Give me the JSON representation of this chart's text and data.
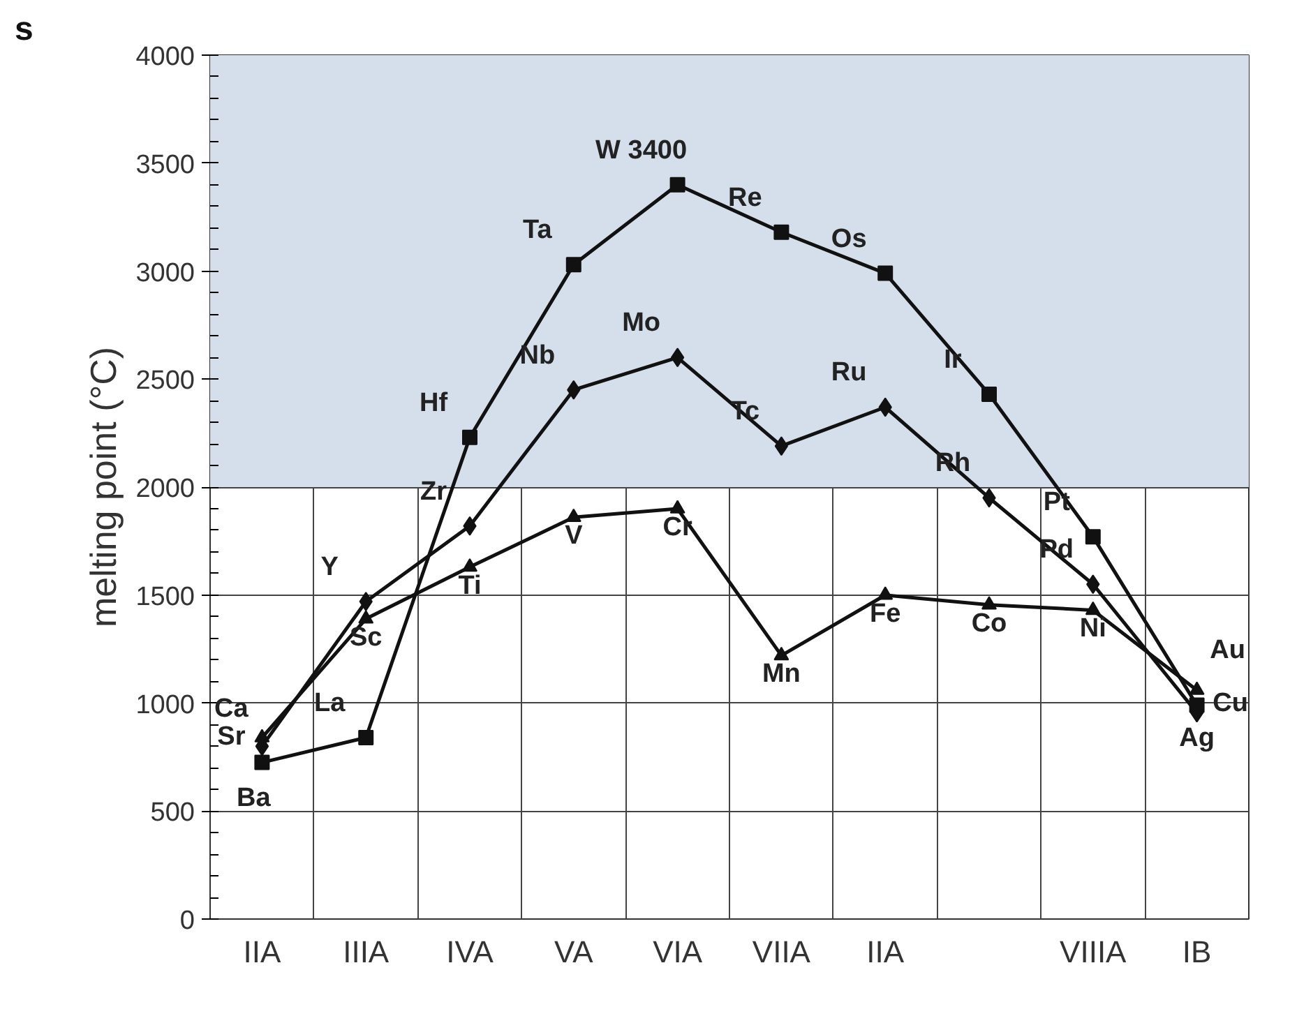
{
  "chart_data": {
    "type": "line",
    "ylabel": "melting point (°C)",
    "categories": [
      "IIA",
      "IIIA",
      "IVA",
      "VA",
      "VIA",
      "VIIA",
      "IIA",
      null,
      "VIIIA",
      "IB"
    ],
    "series": [
      {
        "color": "#111111",
        "marker": "triangle",
        "values": [
          840,
          1390,
          1630,
          1860,
          1900,
          1220,
          1500,
          1455,
          1430,
          1060
        ],
        "value_labels": [
          "Ca",
          "Sc",
          "Ti",
          "V",
          "Cr",
          "Mn",
          "Fe",
          "Co",
          "Ni",
          "Au"
        ]
      },
      {
        "color": "#111111",
        "marker": "diamond",
        "values": [
          800,
          1470,
          1820,
          2450,
          2600,
          2190,
          2370,
          1950,
          1550,
          955
        ],
        "value_labels": [
          "Sr",
          "Y",
          "Zr",
          "Nb",
          "Mo",
          "Tc",
          "Ru",
          "Rh",
          "Pd",
          "Cu"
        ]
      },
      {
        "color": "#111111",
        "marker": "square",
        "values": [
          725,
          840,
          2230,
          3030,
          3400,
          3180,
          2990,
          2430,
          1770,
          990
        ],
        "value_labels": [
          "Ba",
          "La",
          "Hf",
          "Ta",
          "W 3400",
          "Re",
          "Os",
          "Ir",
          "Pt",
          "Ag"
        ]
      }
    ],
    "ylim": [
      0,
      4000
    ],
    "yticks": [
      0,
      500,
      1000,
      1500,
      2000,
      2500,
      3000,
      3500,
      4000
    ],
    "grid": true,
    "bands": [
      {
        "axis": "y",
        "from": 2000,
        "to": 4000,
        "color": "#d5dfeb"
      }
    ],
    "annotations": [
      "s"
    ]
  }
}
